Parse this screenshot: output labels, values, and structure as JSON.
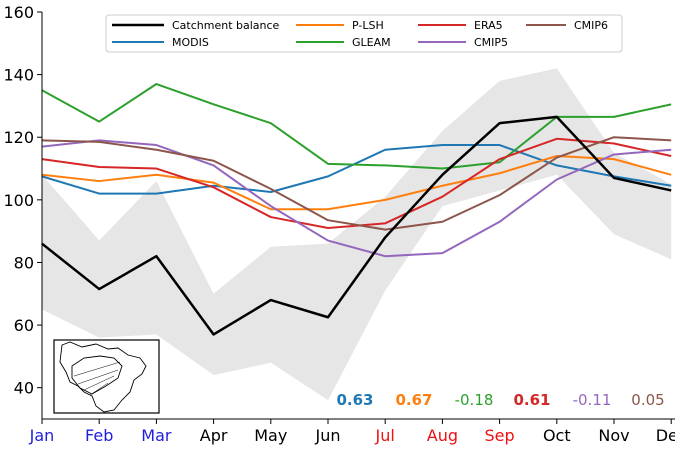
{
  "chart_data": {
    "type": "line",
    "title": "",
    "xlabel": "",
    "ylabel": "",
    "ylim": [
      30,
      160
    ],
    "yticks": [
      40,
      60,
      80,
      100,
      120,
      140,
      160
    ],
    "grid": false,
    "legend_position": "top",
    "categories": [
      "Jan",
      "Feb",
      "Mar",
      "Apr",
      "May",
      "Jun",
      "Jul",
      "Aug",
      "Sep",
      "Oct",
      "Nov",
      "Dec"
    ],
    "category_label_colors": [
      "#1f1fdd",
      "#1f1fdd",
      "#1f1fdd",
      "#000000",
      "#000000",
      "#000000",
      "#ee1111",
      "#ee1111",
      "#ee1111",
      "#000000",
      "#000000",
      "#000000"
    ],
    "spread_band": {
      "upper": [
        108,
        87,
        106,
        70,
        85,
        86,
        101,
        122,
        138,
        142,
        115,
        105
      ],
      "lower": [
        65,
        56,
        57,
        44,
        48,
        36,
        71,
        98,
        103,
        108,
        89,
        81
      ],
      "color": "#e6e6e6"
    },
    "series": [
      {
        "name": "Catchment balance",
        "color": "#000000",
        "width": 2.5,
        "values": [
          86,
          71.5,
          82,
          57,
          68,
          62.5,
          88,
          108,
          124.5,
          126.5,
          107,
          103
        ]
      },
      {
        "name": "MODIS",
        "color": "#1f77b4",
        "width": 2,
        "values": [
          107.5,
          102,
          102,
          104.5,
          102.5,
          107.5,
          116,
          117.5,
          117.5,
          111,
          107.5,
          104.5
        ]
      },
      {
        "name": "P-LSH",
        "color": "#ff7f0e",
        "width": 2,
        "values": [
          108,
          106,
          108,
          105.5,
          97,
          97,
          100,
          104.5,
          108.5,
          114,
          113,
          108
        ]
      },
      {
        "name": "GLEAM",
        "color": "#2ca02c",
        "width": 2,
        "values": [
          135,
          125,
          137,
          130.5,
          124.5,
          111.5,
          111,
          110,
          112,
          126.5,
          126.5,
          130.5
        ]
      },
      {
        "name": "ERA5",
        "color": "#d62728",
        "width": 2,
        "values": [
          113,
          110.5,
          110,
          104,
          94.5,
          91,
          92.5,
          101,
          113,
          119.5,
          118,
          114
        ]
      },
      {
        "name": "CMIP5",
        "color": "#9467bd",
        "width": 2,
        "values": [
          117,
          119,
          117.5,
          111,
          98,
          87,
          82,
          83,
          93,
          106.5,
          114.5,
          116
        ]
      },
      {
        "name": "CMIP6",
        "color": "#8c564b",
        "width": 2,
        "values": [
          119,
          118.5,
          116,
          112.5,
          103.5,
          93.5,
          90.5,
          93,
          101.5,
          113.5,
          120,
          119
        ]
      }
    ],
    "correlations": [
      {
        "text": "0.63",
        "color": "#1f77b4",
        "bold": true
      },
      {
        "text": "0.67",
        "color": "#ff7f0e",
        "bold": true
      },
      {
        "text": "-0.18",
        "color": "#2ca02c",
        "bold": false
      },
      {
        "text": "0.61",
        "color": "#d62728",
        "bold": true
      },
      {
        "text": "-0.11",
        "color": "#9467bd",
        "bold": false
      },
      {
        "text": "0.05",
        "color": "#8c564b",
        "bold": false
      }
    ],
    "inset": {
      "name": "catchment-map",
      "frame": "black"
    }
  }
}
